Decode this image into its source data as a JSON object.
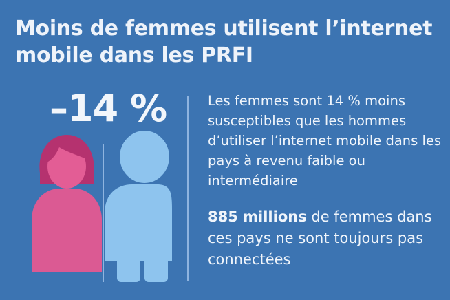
{
  "title": "Moins de femmes utilisent l’internet mobile dans les PRFI",
  "stat": {
    "value": "–14 %"
  },
  "description": "Les femmes sont 14 % moins susceptibles que les hommes d’utiliser l’internet mobile dans les pays à revenu faible ou intermédiaire",
  "highlight": {
    "bold": "885 millions",
    "rest": " de femmes dans ces pays ne sont toujours pas connectées"
  },
  "colors": {
    "background": "#3c74b2",
    "woman_hair": "#b5326f",
    "woman_face": "#e35d95",
    "woman_body": "#db5a93",
    "man_figure": "#8ec4ee",
    "divider": "#8fb4df"
  },
  "icons": {
    "woman": "woman-figure-icon",
    "man": "man-figure-icon"
  }
}
